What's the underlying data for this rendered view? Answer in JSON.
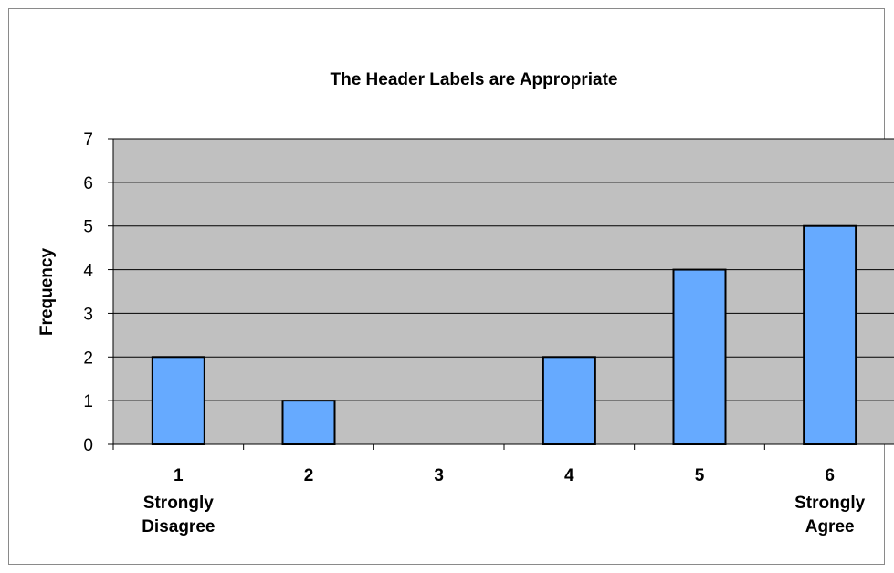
{
  "chart_data": {
    "type": "bar",
    "title": "The Header Labels are Appropriate",
    "xlabel": "",
    "ylabel": "Frequency",
    "categories": [
      "1",
      "2",
      "3",
      "4",
      "5",
      "6"
    ],
    "category_sublabels": [
      [
        "Strongly",
        "Disagree"
      ],
      [],
      [],
      [],
      [],
      [
        "Strongly",
        "Agree"
      ]
    ],
    "values": [
      2,
      1,
      0,
      2,
      4,
      5
    ],
    "ylim": [
      0,
      7
    ],
    "yticks": [
      0,
      1,
      2,
      3,
      4,
      5,
      6,
      7
    ],
    "grid": true,
    "legend": "none",
    "colors": {
      "plot_background": "#c0c0c0",
      "bar_fill": "#66aaff",
      "bar_stroke": "#000000",
      "gridline": "#000000"
    }
  }
}
